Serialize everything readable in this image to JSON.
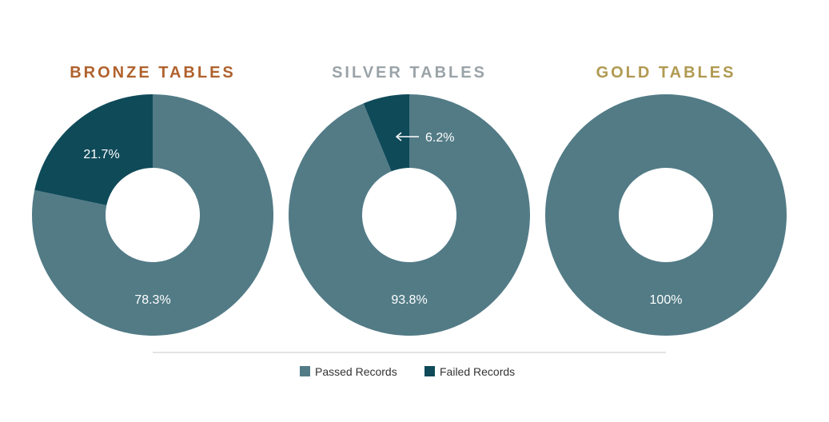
{
  "chart_data": [
    {
      "type": "pie",
      "title": "BRONZE TABLES",
      "title_color": "#b0622e",
      "slices": [
        {
          "label": "Passed Records",
          "value": 78.3,
          "display": "78.3%"
        },
        {
          "label": "Failed Records",
          "value": 21.7,
          "display": "21.7%"
        }
      ]
    },
    {
      "type": "pie",
      "title": "SILVER TABLES",
      "title_color": "#9aa3a8",
      "slices": [
        {
          "label": "Passed Records",
          "value": 93.8,
          "display": "93.8%"
        },
        {
          "label": "Failed Records",
          "value": 6.2,
          "display": "6.2%"
        }
      ]
    },
    {
      "type": "pie",
      "title": "GOLD TABLES",
      "title_color": "#b09a52",
      "slices": [
        {
          "label": "Passed Records",
          "value": 100,
          "display": "100%"
        },
        {
          "label": "Failed Records",
          "value": 0,
          "display": ""
        }
      ]
    }
  ],
  "legend": {
    "items": [
      {
        "label": "Passed Records",
        "color": "#527b86"
      },
      {
        "label": "Failed Records",
        "color": "#0f4a59"
      }
    ]
  },
  "colors": {
    "passed": "#527b86",
    "failed": "#0f4a59",
    "divider": "#c9c9c9",
    "label_text": "#ffffff",
    "legend_text": "#333333"
  }
}
